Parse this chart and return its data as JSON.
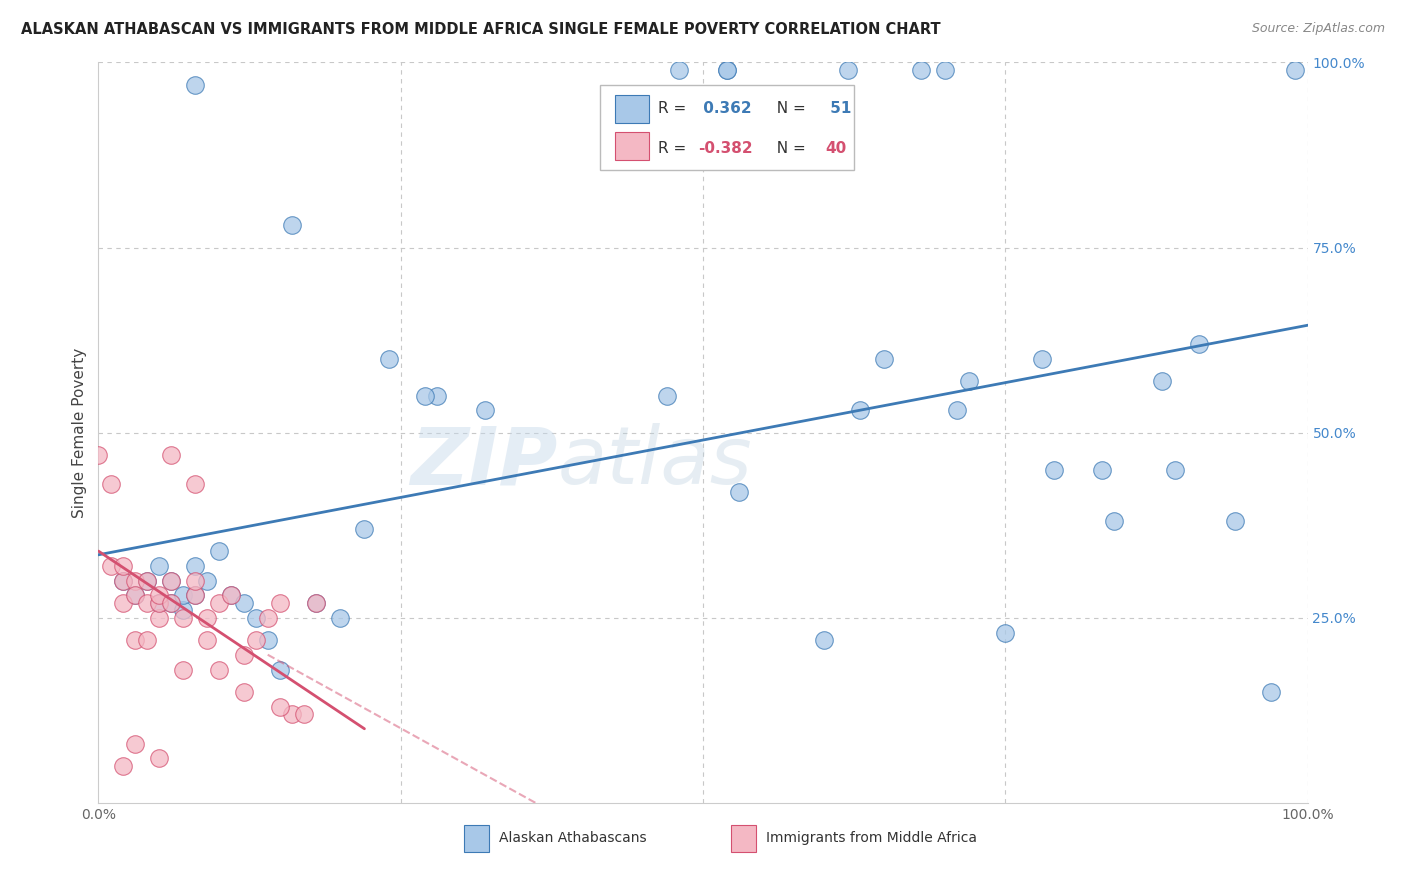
{
  "title": "ALASKAN ATHABASCAN VS IMMIGRANTS FROM MIDDLE AFRICA SINGLE FEMALE POVERTY CORRELATION CHART",
  "source": "Source: ZipAtlas.com",
  "ylabel": "Single Female Poverty",
  "xlim": [
    0,
    1
  ],
  "ylim": [
    0,
    1
  ],
  "blue_R": 0.362,
  "blue_N": 51,
  "pink_R": -0.382,
  "pink_N": 40,
  "blue_color": "#a8c8e8",
  "pink_color": "#f4b8c4",
  "blue_line_color": "#3d7ab5",
  "pink_line_color": "#d45070",
  "grid_color": "#c8c8c8",
  "blue_scatter_x": [
    0.08,
    0.16,
    0.24,
    0.28,
    0.32,
    0.47,
    0.52,
    0.53,
    0.63,
    0.65,
    0.71,
    0.72,
    0.78,
    0.79,
    0.83,
    0.84,
    0.88,
    0.89,
    0.91,
    0.94,
    0.97,
    0.99,
    0.02,
    0.03,
    0.04,
    0.05,
    0.05,
    0.06,
    0.06,
    0.07,
    0.07,
    0.08,
    0.08,
    0.09,
    0.1,
    0.11,
    0.12,
    0.13,
    0.14,
    0.15,
    0.18,
    0.2,
    0.22,
    0.48,
    0.52,
    0.62,
    0.68,
    0.7,
    0.6,
    0.75,
    0.27
  ],
  "blue_scatter_y": [
    0.97,
    0.78,
    0.6,
    0.55,
    0.53,
    0.55,
    0.99,
    0.42,
    0.53,
    0.6,
    0.53,
    0.57,
    0.6,
    0.45,
    0.45,
    0.38,
    0.57,
    0.45,
    0.62,
    0.38,
    0.15,
    0.99,
    0.3,
    0.28,
    0.3,
    0.27,
    0.32,
    0.3,
    0.27,
    0.26,
    0.28,
    0.28,
    0.32,
    0.3,
    0.34,
    0.28,
    0.27,
    0.25,
    0.22,
    0.18,
    0.27,
    0.25,
    0.37,
    0.99,
    0.99,
    0.99,
    0.99,
    0.99,
    0.22,
    0.23,
    0.55
  ],
  "pink_scatter_x": [
    0.0,
    0.01,
    0.01,
    0.02,
    0.02,
    0.02,
    0.03,
    0.03,
    0.03,
    0.04,
    0.04,
    0.04,
    0.05,
    0.05,
    0.05,
    0.06,
    0.06,
    0.07,
    0.07,
    0.08,
    0.08,
    0.09,
    0.09,
    0.1,
    0.11,
    0.12,
    0.13,
    0.14,
    0.15,
    0.16,
    0.06,
    0.08,
    0.1,
    0.12,
    0.15,
    0.17,
    0.18,
    0.02,
    0.03,
    0.05
  ],
  "pink_scatter_y": [
    0.47,
    0.43,
    0.32,
    0.3,
    0.27,
    0.32,
    0.3,
    0.28,
    0.22,
    0.27,
    0.3,
    0.22,
    0.25,
    0.27,
    0.28,
    0.3,
    0.27,
    0.25,
    0.18,
    0.28,
    0.3,
    0.22,
    0.25,
    0.27,
    0.28,
    0.2,
    0.22,
    0.25,
    0.27,
    0.12,
    0.47,
    0.43,
    0.18,
    0.15,
    0.13,
    0.12,
    0.27,
    0.05,
    0.08,
    0.06
  ],
  "blue_line_x0": 0.0,
  "blue_line_x1": 1.0,
  "blue_line_y0": 0.335,
  "blue_line_y1": 0.645,
  "pink_line_x0": 0.0,
  "pink_line_x1": 0.22,
  "pink_line_y0": 0.34,
  "pink_line_y1": 0.1
}
